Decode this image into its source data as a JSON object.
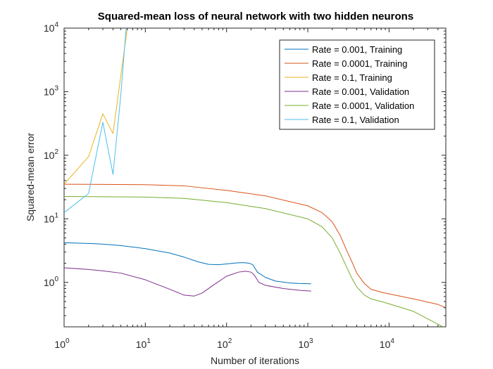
{
  "chart_data": {
    "type": "line",
    "title": "Squared-mean loss of neural network with two hidden neurons",
    "xlabel": "Number of iterations",
    "ylabel": "Squared-mean error",
    "xscale": "log",
    "yscale": "log",
    "xlim": [
      1,
      50000
    ],
    "ylim": [
      0.2,
      10000
    ],
    "grid": false,
    "legend_position": "top-right",
    "x_ticks": [
      {
        "base": "10",
        "exp": "0",
        "value": 1
      },
      {
        "base": "10",
        "exp": "1",
        "value": 10
      },
      {
        "base": "10",
        "exp": "2",
        "value": 100
      },
      {
        "base": "10",
        "exp": "3",
        "value": 1000
      },
      {
        "base": "10",
        "exp": "4",
        "value": 10000
      }
    ],
    "y_ticks": [
      {
        "base": "10",
        "exp": "0",
        "value": 1
      },
      {
        "base": "10",
        "exp": "1",
        "value": 10
      },
      {
        "base": "10",
        "exp": "2",
        "value": 100
      },
      {
        "base": "10",
        "exp": "3",
        "value": 1000
      },
      {
        "base": "10",
        "exp": "4",
        "value": 10000
      }
    ],
    "series": [
      {
        "name": "Rate = 0.001, Training",
        "color": "#0072BD",
        "x": [
          1,
          2,
          3,
          5,
          10,
          20,
          30,
          45,
          60,
          80,
          100,
          130,
          160,
          190,
          210,
          240,
          300,
          400,
          600,
          800,
          1100
        ],
        "y": [
          4.2,
          4.1,
          4.0,
          3.8,
          3.4,
          2.9,
          2.5,
          2.1,
          1.92,
          1.9,
          1.95,
          2.02,
          2.05,
          2.0,
          1.9,
          1.45,
          1.2,
          1.05,
          0.98,
          0.96,
          0.95
        ]
      },
      {
        "name": "Rate = 0.0001, Training",
        "color": "#D95319",
        "x": [
          1,
          10,
          30,
          100,
          300,
          1000,
          1500,
          2000,
          2500,
          3000,
          3500,
          4000,
          5000,
          6000,
          8000,
          10000,
          20000,
          40000,
          50000
        ],
        "y": [
          35,
          34.5,
          33,
          28,
          23,
          16,
          12.5,
          9,
          5.5,
          3.2,
          2.1,
          1.4,
          0.95,
          0.78,
          0.7,
          0.66,
          0.55,
          0.45,
          0.4
        ]
      },
      {
        "name": "Rate = 0.1, Training",
        "color": "#EDB120",
        "x": [
          1,
          2,
          3,
          4,
          5,
          6
        ],
        "y": [
          35,
          95,
          450,
          220,
          1800,
          10000
        ]
      },
      {
        "name": "Rate = 0.001, Validation",
        "color": "#7E2F8E",
        "x": [
          1,
          2,
          3,
          5,
          10,
          20,
          30,
          40,
          50,
          70,
          100,
          140,
          170,
          200,
          220,
          250,
          300,
          500,
          800,
          1100
        ],
        "y": [
          1.7,
          1.6,
          1.52,
          1.4,
          1.1,
          0.78,
          0.63,
          0.61,
          0.68,
          0.92,
          1.25,
          1.45,
          1.5,
          1.45,
          1.3,
          1.0,
          0.9,
          0.8,
          0.75,
          0.73
        ]
      },
      {
        "name": "Rate = 0.0001, Validation",
        "color": "#77AC30",
        "x": [
          1,
          10,
          30,
          100,
          300,
          1000,
          1500,
          2000,
          2500,
          3000,
          3500,
          4000,
          5000,
          6000,
          8000,
          10000,
          20000,
          40000,
          50000
        ],
        "y": [
          22.5,
          22,
          21,
          18,
          14.5,
          10,
          7.5,
          5,
          2.9,
          1.75,
          1.15,
          0.85,
          0.63,
          0.55,
          0.5,
          0.46,
          0.35,
          0.22,
          0.19
        ]
      },
      {
        "name": "Rate = 0.1, Validation",
        "color": "#4DBEEE",
        "x": [
          1,
          2,
          3,
          4,
          5,
          5.8
        ],
        "y": [
          12.5,
          25,
          330,
          50,
          900,
          10000
        ]
      }
    ]
  }
}
